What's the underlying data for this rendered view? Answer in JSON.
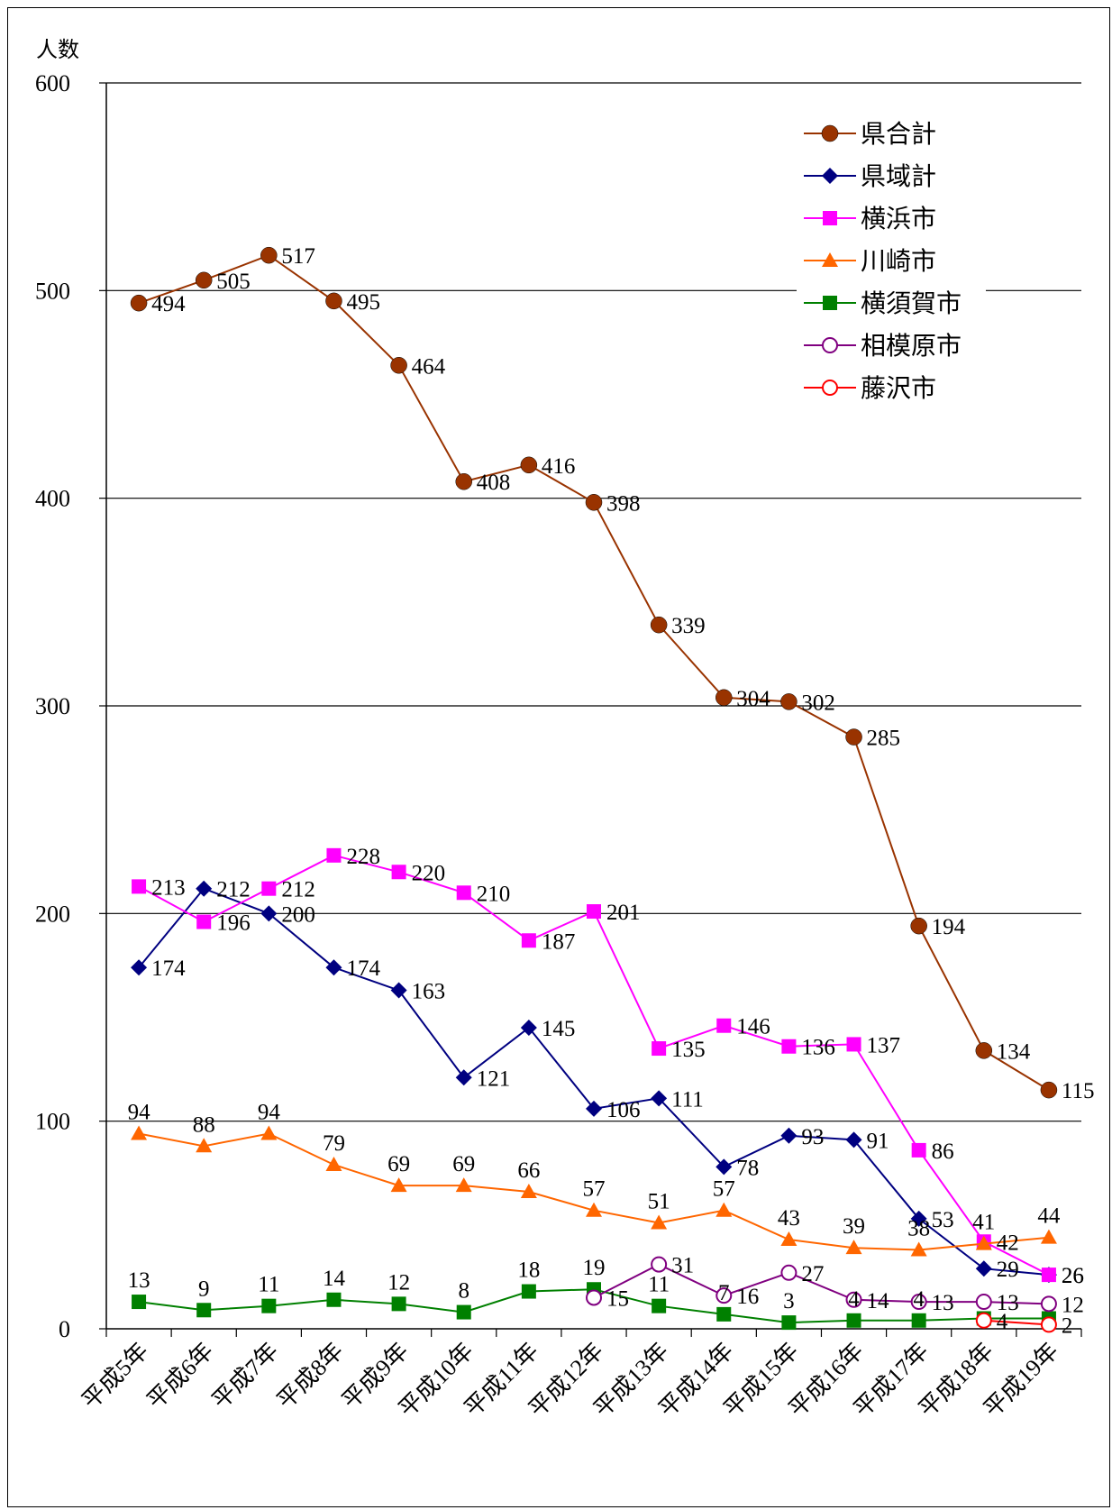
{
  "chart_data": {
    "type": "line",
    "ylabel": "人数",
    "ylim": [
      0,
      600
    ],
    "yticks": [
      0,
      100,
      200,
      300,
      400,
      500,
      600
    ],
    "grid": true,
    "legend_position": "top-right",
    "categories": [
      "平成5年",
      "平成6年",
      "平成7年",
      "平成8年",
      "平成9年",
      "平成10年",
      "平成11年",
      "平成12年",
      "平成13年",
      "平成14年",
      "平成15年",
      "平成16年",
      "平成17年",
      "平成18年",
      "平成19年"
    ],
    "series": [
      {
        "name": "県合計",
        "color": "#993300",
        "marker": "circle-filled",
        "values": [
          494,
          505,
          517,
          495,
          464,
          408,
          416,
          398,
          339,
          304,
          302,
          285,
          194,
          134,
          115
        ]
      },
      {
        "name": "県域計",
        "color": "#000080",
        "marker": "diamond",
        "values": [
          174,
          212,
          200,
          174,
          163,
          121,
          145,
          106,
          111,
          78,
          93,
          91,
          53,
          29,
          26
        ]
      },
      {
        "name": "横浜市",
        "color": "#FF00FF",
        "marker": "square",
        "values": [
          213,
          196,
          212,
          228,
          220,
          210,
          187,
          201,
          135,
          146,
          136,
          137,
          86,
          42,
          26
        ]
      },
      {
        "name": "川崎市",
        "color": "#FF6600",
        "marker": "triangle",
        "values": [
          94,
          88,
          94,
          79,
          69,
          69,
          66,
          57,
          51,
          57,
          43,
          39,
          38,
          41,
          44
        ]
      },
      {
        "name": "横須賀市",
        "color": "#008000",
        "marker": "square",
        "values": [
          13,
          9,
          11,
          14,
          12,
          8,
          18,
          19,
          11,
          7,
          3,
          4,
          4,
          5,
          5
        ]
      },
      {
        "name": "相模原市",
        "color": "#800080",
        "marker": "circle-open",
        "values": [
          null,
          null,
          null,
          null,
          null,
          null,
          null,
          15,
          31,
          16,
          27,
          14,
          13,
          13,
          12
        ]
      },
      {
        "name": "藤沢市",
        "color": "#FF0000",
        "marker": "circle-open",
        "values": [
          null,
          null,
          null,
          null,
          null,
          null,
          null,
          null,
          null,
          null,
          null,
          null,
          null,
          4,
          2
        ]
      }
    ],
    "data_labels": [
      {
        "series": 0,
        "labels": [
          "494",
          "505",
          "517",
          "495",
          "464",
          "408",
          "416",
          "398",
          "339",
          "304",
          "302",
          "285",
          "194",
          "134",
          "115"
        ]
      },
      {
        "series": 1,
        "labels": [
          "174",
          "212",
          "200",
          "174",
          "163",
          "121",
          "145",
          "106",
          "111",
          "78",
          "93",
          "91",
          "53",
          "29",
          "26"
        ]
      },
      {
        "series": 2,
        "labels": [
          "213",
          "196",
          "212",
          "228",
          "220",
          "210",
          "187",
          "201",
          "135",
          "146",
          "136",
          "137",
          "86",
          "42",
          "26"
        ]
      },
      {
        "series": 3,
        "labels": [
          "94",
          "88",
          "94",
          "79",
          "69",
          "69",
          "66",
          "57",
          "51",
          "57",
          "43",
          "39",
          "38",
          "41",
          "44"
        ]
      },
      {
        "series": 4,
        "labels": [
          "13",
          "9",
          "11",
          "14",
          "12",
          "8",
          "18",
          "19",
          "11",
          "7",
          "3",
          "4",
          "4",
          "",
          ""
        ]
      },
      {
        "series": 5,
        "labels": [
          "",
          "",
          "",
          "",
          "",
          "",
          "",
          "15",
          "31",
          "16",
          "27",
          "14",
          "13",
          "13",
          "12"
        ]
      },
      {
        "series": 6,
        "labels": [
          "",
          "",
          "",
          "",
          "",
          "",
          "",
          "",
          "",
          "",
          "",
          "",
          "",
          "4",
          "2"
        ]
      }
    ]
  }
}
